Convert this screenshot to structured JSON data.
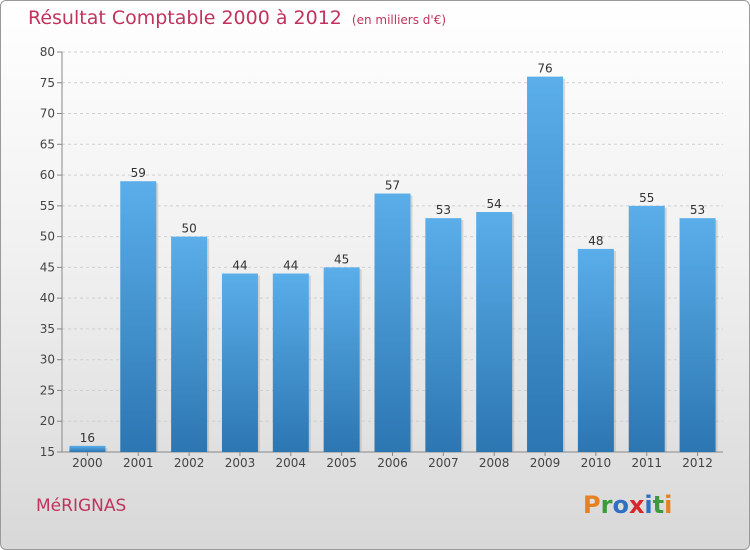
{
  "chart_data": {
    "type": "bar",
    "title": "Résultat Comptable 2000 à 2012",
    "unit_note": "(en milliers d'€)",
    "categories": [
      "2000",
      "2001",
      "2002",
      "2003",
      "2004",
      "2005",
      "2006",
      "2007",
      "2008",
      "2009",
      "2010",
      "2011",
      "2012"
    ],
    "values": [
      16,
      59,
      50,
      44,
      44,
      45,
      57,
      53,
      54,
      76,
      48,
      55,
      53
    ],
    "ylim": [
      15,
      80
    ],
    "yticks": [
      15,
      20,
      25,
      30,
      35,
      40,
      45,
      50,
      55,
      60,
      65,
      70,
      75,
      80
    ],
    "grid": true,
    "xlabel": "",
    "ylabel": ""
  },
  "footer": {
    "city": "MéRIGNAS",
    "logo_letters": [
      "P",
      "r",
      "o",
      "x",
      "i",
      "t",
      "i"
    ],
    "logo_colors": [
      "#e8801f",
      "#3c9a3c",
      "#2f6fc4",
      "#d8262c",
      "#2f6fc4",
      "#3c9a3c",
      "#e8801f"
    ]
  },
  "colors": {
    "bar_light": "#5aaeea",
    "bar_dark": "#2c76b2",
    "title": "#c0335d"
  }
}
